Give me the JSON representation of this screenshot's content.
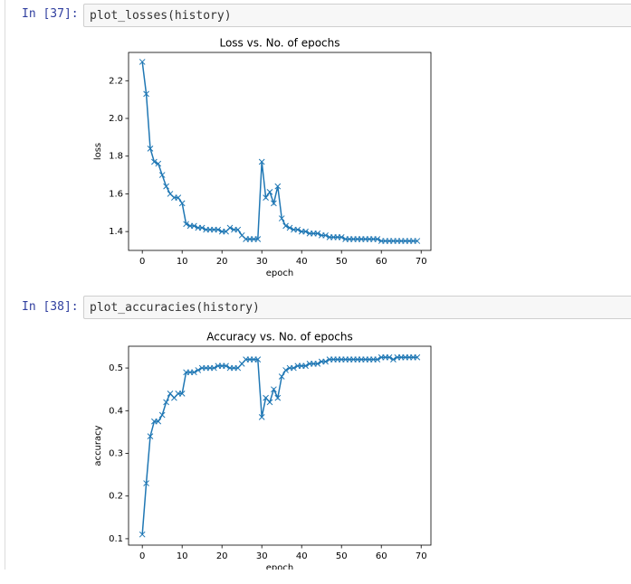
{
  "cells": [
    {
      "prompt": "In [37]:",
      "code": "plot_losses(history)"
    },
    {
      "prompt": "In [38]:",
      "code": "plot_accuracies(history)"
    }
  ],
  "chart_data": [
    {
      "type": "line",
      "title": "Loss vs. No. of epochs",
      "x_label": "epoch",
      "y_label": "loss",
      "x": [
        0,
        1,
        2,
        3,
        4,
        5,
        6,
        7,
        8,
        9,
        10,
        11,
        12,
        13,
        14,
        15,
        16,
        17,
        18,
        19,
        20,
        21,
        22,
        23,
        24,
        25,
        26,
        27,
        28,
        29,
        30,
        31,
        32,
        33,
        34,
        35,
        36,
        37,
        38,
        39,
        40,
        41,
        42,
        43,
        44,
        45,
        46,
        47,
        48,
        49,
        50,
        51,
        52,
        53,
        54,
        55,
        56,
        57,
        58,
        59,
        60,
        61,
        62,
        63,
        64,
        65,
        66,
        67,
        68,
        69
      ],
      "series": [
        {
          "color": "#1f77b4",
          "marker": "x",
          "values": [
            2.3,
            2.13,
            1.84,
            1.77,
            1.76,
            1.7,
            1.64,
            1.6,
            1.58,
            1.58,
            1.55,
            1.44,
            1.43,
            1.43,
            1.42,
            1.42,
            1.41,
            1.41,
            1.41,
            1.41,
            1.4,
            1.4,
            1.42,
            1.41,
            1.41,
            1.38,
            1.36,
            1.36,
            1.36,
            1.36,
            1.77,
            1.58,
            1.61,
            1.55,
            1.64,
            1.47,
            1.43,
            1.42,
            1.41,
            1.41,
            1.4,
            1.4,
            1.39,
            1.39,
            1.39,
            1.38,
            1.38,
            1.37,
            1.37,
            1.37,
            1.37,
            1.36,
            1.36,
            1.36,
            1.36,
            1.36,
            1.36,
            1.36,
            1.36,
            1.36,
            1.35,
            1.35,
            1.35,
            1.35,
            1.35,
            1.35,
            1.35,
            1.35,
            1.35,
            1.35
          ]
        }
      ],
      "xlim": [
        -3.45,
        72.45
      ],
      "xticks": [
        0,
        10,
        20,
        30,
        40,
        50,
        60,
        70
      ],
      "ylim": [
        1.3,
        2.35
      ],
      "yticks": [
        1.4,
        1.6,
        1.8,
        {
          "value": 2,
          "label": "2.0"
        },
        2.2
      ],
      "grid": false
    },
    {
      "type": "line",
      "title": "Accuracy vs. No. of epochs",
      "x_label": "epoch",
      "y_label": "accuracy",
      "x": [
        0,
        1,
        2,
        3,
        4,
        5,
        6,
        7,
        8,
        9,
        10,
        11,
        12,
        13,
        14,
        15,
        16,
        17,
        18,
        19,
        20,
        21,
        22,
        23,
        24,
        25,
        26,
        27,
        28,
        29,
        30,
        31,
        32,
        33,
        34,
        35,
        36,
        37,
        38,
        39,
        40,
        41,
        42,
        43,
        44,
        45,
        46,
        47,
        48,
        49,
        50,
        51,
        52,
        53,
        54,
        55,
        56,
        57,
        58,
        59,
        60,
        61,
        62,
        63,
        64,
        65,
        66,
        67,
        68,
        69
      ],
      "series": [
        {
          "color": "#1f77b4",
          "marker": "x",
          "values": [
            0.11,
            0.23,
            0.34,
            0.375,
            0.375,
            0.39,
            0.42,
            0.44,
            0.43,
            0.44,
            0.44,
            0.49,
            0.49,
            0.49,
            0.495,
            0.5,
            0.5,
            0.5,
            0.5,
            0.505,
            0.505,
            0.505,
            0.5,
            0.5,
            0.5,
            0.51,
            0.52,
            0.52,
            0.52,
            0.52,
            0.385,
            0.43,
            0.42,
            0.45,
            0.43,
            0.48,
            0.495,
            0.5,
            0.5,
            0.505,
            0.505,
            0.505,
            0.51,
            0.51,
            0.51,
            0.515,
            0.515,
            0.52,
            0.52,
            0.52,
            0.52,
            0.52,
            0.52,
            0.52,
            0.52,
            0.52,
            0.52,
            0.52,
            0.52,
            0.52,
            0.525,
            0.525,
            0.525,
            0.52,
            0.525,
            0.525,
            0.525,
            0.525,
            0.525,
            0.525
          ]
        }
      ],
      "xlim": [
        -3.45,
        72.45
      ],
      "xticks": [
        0,
        10,
        20,
        30,
        40,
        50,
        60,
        70
      ],
      "ylim": [
        0.085,
        0.551
      ],
      "yticks": [
        0.1,
        0.2,
        0.3,
        0.4,
        0.5
      ],
      "grid": false
    }
  ]
}
